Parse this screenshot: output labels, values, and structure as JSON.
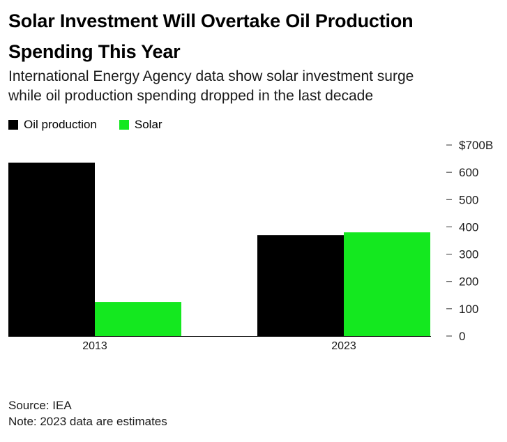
{
  "title_line1": "Solar Investment Will Overtake Oil Production",
  "title_line2": "Spending This Year",
  "subtitle_line1": "International Energy Agency data show solar investment surge",
  "subtitle_line2": "while oil production spending dropped in the last decade",
  "source": "Source: IEA",
  "note": "Note: 2023 data are estimates",
  "colors": {
    "oil": "#000000",
    "solar": "#14e81f",
    "axis": "#000000",
    "text": "#1a1a1a"
  },
  "chart_data": {
    "type": "bar",
    "categories": [
      "2013",
      "2023"
    ],
    "series": [
      {
        "name": "Oil production",
        "values": [
          635,
          370
        ]
      },
      {
        "name": "Solar",
        "values": [
          125,
          380
        ]
      }
    ],
    "ylim": [
      0,
      700
    ],
    "yticks": [
      0,
      100,
      200,
      300,
      400,
      500,
      600,
      700
    ],
    "ytick_labels": [
      "0",
      "100",
      "200",
      "300",
      "400",
      "500",
      "600",
      "$700B"
    ],
    "legend_position": "top-left",
    "grid": false
  }
}
